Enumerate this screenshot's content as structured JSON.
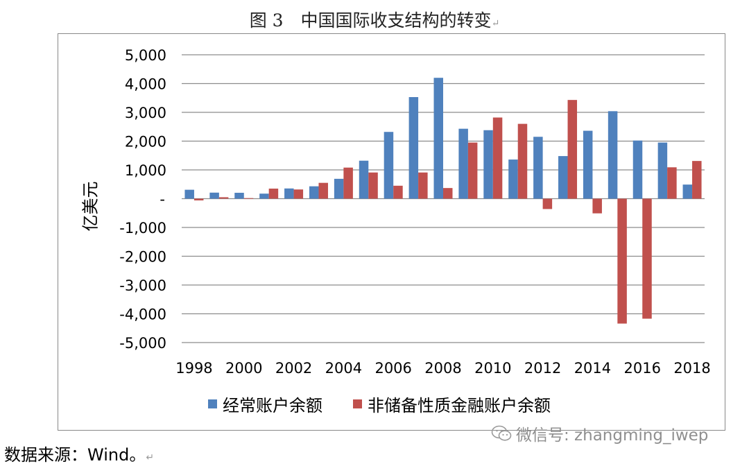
{
  "figure_title": "图 3　中国国际收支结构的转变",
  "title_mark": "↵",
  "source_text": "数据来源：Wind。",
  "source_mark": "↵",
  "watermark_text": "微信号: zhangming_iwep",
  "watermark_icon": "wechat-icon",
  "chart_data": {
    "type": "bar",
    "title": "",
    "xlabel": "",
    "ylabel": "亿美元",
    "ylim": [
      -5000,
      5000
    ],
    "yticks": [
      5000,
      4000,
      3000,
      2000,
      1000,
      0,
      -1000,
      -2000,
      -3000,
      -4000,
      -5000
    ],
    "ytick_labels": [
      "5,000",
      "4,000",
      "3,000",
      "2,000",
      "1,000",
      "-",
      "-1,000",
      "-2,000",
      "-3,000",
      "-4,000",
      "-5,000"
    ],
    "grid": true,
    "legend_position": "bottom",
    "categories": [
      "1998",
      "1999",
      "2000",
      "2001",
      "2002",
      "2003",
      "2004",
      "2005",
      "2006",
      "2007",
      "2008",
      "2009",
      "2010",
      "2011",
      "2012",
      "2013",
      "2014",
      "2015",
      "2016",
      "2017",
      "2018"
    ],
    "xtick_labels": [
      "1998",
      "",
      "2000",
      "",
      "2002",
      "",
      "2004",
      "",
      "2006",
      "",
      "2008",
      "",
      "2010",
      "",
      "2012",
      "",
      "2014",
      "",
      "2016",
      "",
      "2018"
    ],
    "series": [
      {
        "name": "经常账户余额",
        "color": "#4f81bd",
        "values": [
          310,
          210,
          205,
          175,
          355,
          430,
          690,
          1320,
          2320,
          3530,
          4200,
          2430,
          2380,
          1360,
          2150,
          1480,
          2360,
          3040,
          2020,
          1950,
          490
        ]
      },
      {
        "name": "非储备性质金融账户余额",
        "color": "#c0504d",
        "values": [
          -60,
          50,
          20,
          350,
          320,
          550,
          1080,
          910,
          450,
          910,
          370,
          1950,
          2820,
          2600,
          -360,
          3430,
          -510,
          -4340,
          -4170,
          1090,
          1310
        ]
      }
    ]
  }
}
